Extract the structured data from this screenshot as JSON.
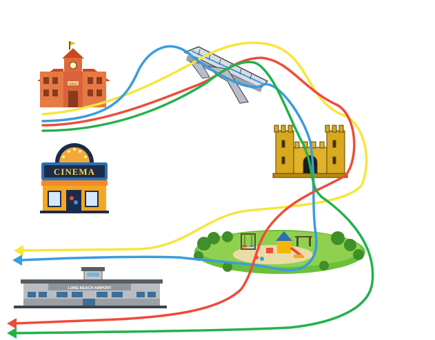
{
  "landmarks": {
    "school": {
      "sign": "School"
    },
    "cinema": {
      "sign": "CINEMA"
    },
    "bridge": {},
    "castle": {},
    "playground": {},
    "airport": {
      "sign": "LONG BEACH AIRPORT"
    }
  },
  "routes": [
    {
      "color": "#f5e63c"
    },
    {
      "color": "#3a9be0"
    },
    {
      "color": "#ef4b3a"
    },
    {
      "color": "#22b24c"
    }
  ]
}
